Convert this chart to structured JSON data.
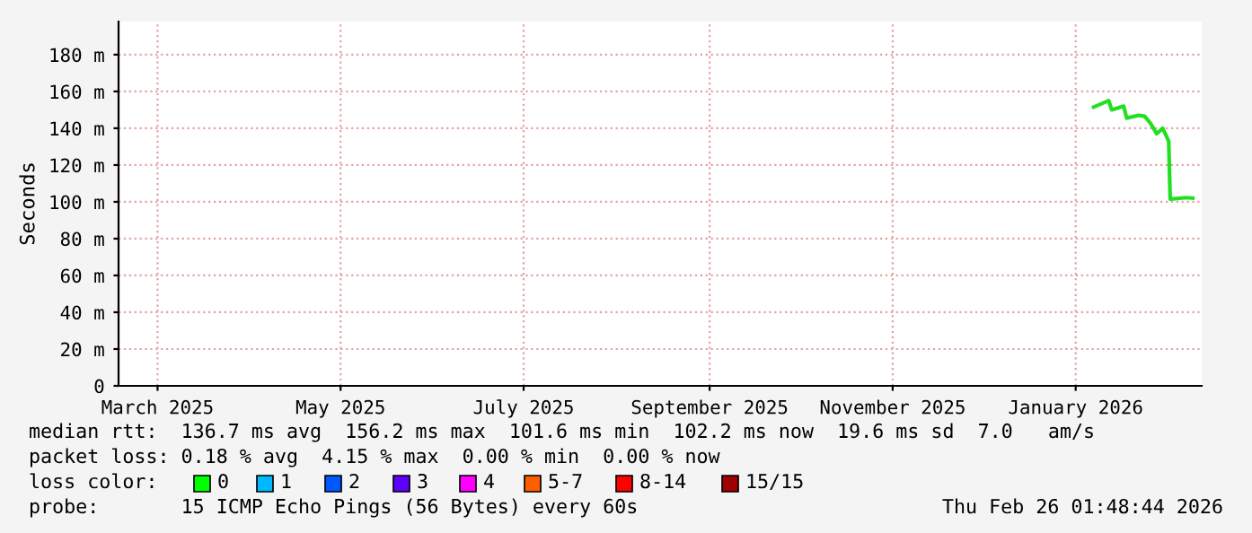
{
  "chart_data": {
    "type": "line",
    "ylabel": "Seconds",
    "x": [
      "2026-01-07",
      "2026-01-12",
      "2026-01-13",
      "2026-01-17",
      "2026-01-18",
      "2026-01-22",
      "2026-01-24",
      "2026-01-26",
      "2026-01-28",
      "2026-01-30",
      "2026-02-01",
      "2026-02-01T12:00",
      "2026-02-07",
      "2026-02-09"
    ],
    "series": [
      {
        "color": "#20e020",
        "values": [
          151.5,
          155,
          150,
          152,
          145.5,
          147,
          146.5,
          142.5,
          137,
          140,
          133,
          101.5,
          102.3,
          102
        ]
      }
    ],
    "xlim": [
      "2025-02-16",
      "2026-02-12"
    ],
    "xticks": [
      {
        "value": "2025-03-01",
        "label": "March 2025"
      },
      {
        "value": "2025-05-01",
        "label": "May 2025"
      },
      {
        "value": "2025-07-01",
        "label": "July 2025"
      },
      {
        "value": "2025-09-01",
        "label": "September 2025"
      },
      {
        "value": "2025-11-01",
        "label": "November 2025"
      },
      {
        "value": "2026-01-01",
        "label": "January 2026"
      }
    ],
    "ylim": [
      0,
      198
    ],
    "yticks": [
      0,
      {
        "value": 20,
        "label": "20 m"
      },
      {
        "value": 40,
        "label": "40 m"
      },
      {
        "value": 60,
        "label": "60 m"
      },
      {
        "value": 80,
        "label": "80 m"
      },
      {
        "value": 100,
        "label": "100 m"
      },
      {
        "value": 120,
        "label": "120 m"
      },
      {
        "value": 140,
        "label": "140 m"
      },
      {
        "value": 160,
        "label": "160 m"
      },
      {
        "value": 180,
        "label": "180 m"
      }
    ],
    "grid": true,
    "marker": "none",
    "line_style": "solid",
    "annotations": [
      "median rtt:  136.7 ms avg  156.2 ms max  101.6 ms min  102.2 ms now  19.6 ms sd  7.0   am/s",
      "packet loss: 0.18 % avg  4.15 % max  0.00 % min  0.00 % now",
      "loss color:",
      "0",
      "1",
      "2",
      "3",
      "4",
      "5-7",
      "8-14",
      "15/15",
      "probe:       15 ICMP Echo Pings (56 Bytes) every 60s",
      "Thu Feb 26 01:48:44 2026"
    ]
  }
}
